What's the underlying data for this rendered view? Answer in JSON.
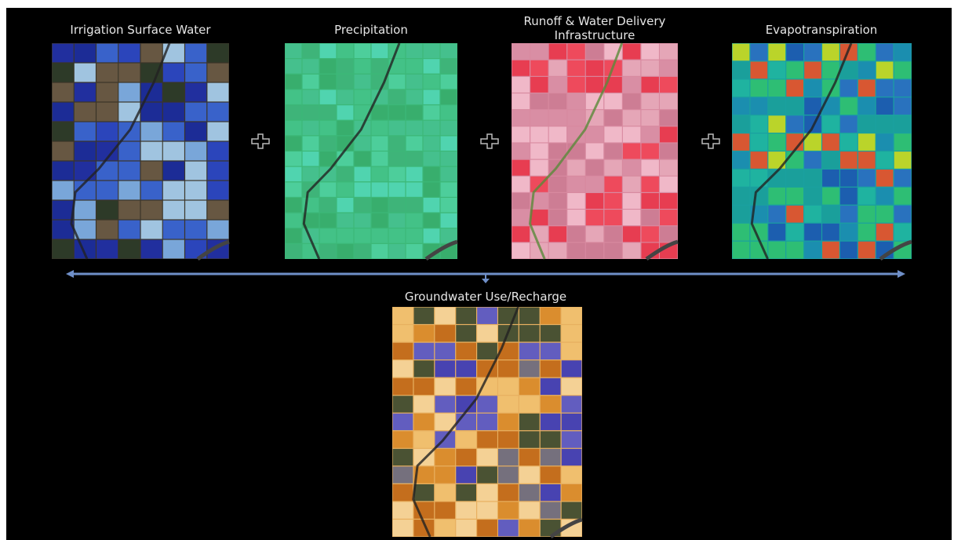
{
  "panels": [
    {
      "title": "Irrigation Surface Water"
    },
    {
      "title": "Precipitation"
    },
    {
      "title": "Runoff & Water Delivery Infrastructure"
    },
    {
      "title": "Evapotranspiration"
    }
  ],
  "result": {
    "title": "Groundwater Use/Recharge"
  }
}
